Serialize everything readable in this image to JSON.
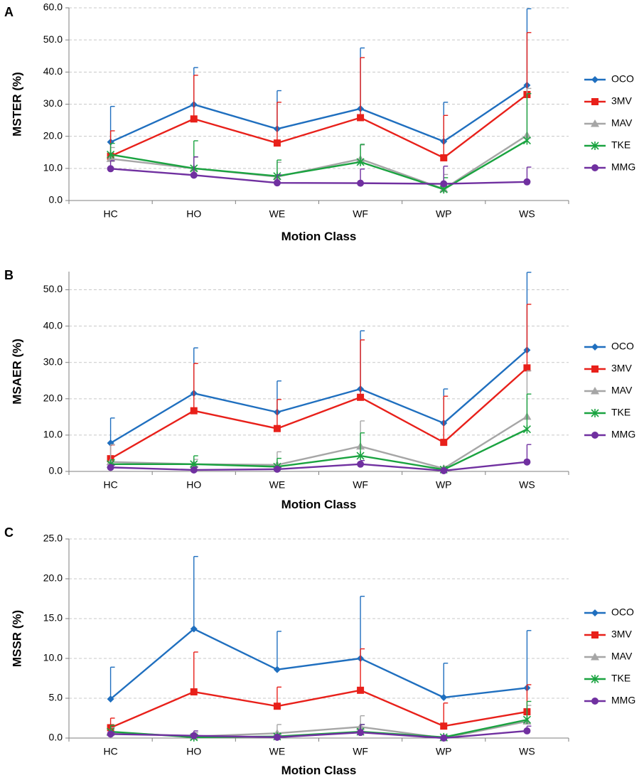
{
  "chart_data": [
    {
      "panel": "A",
      "type": "line",
      "title": "",
      "xlabel": "Motion Class",
      "ylabel": "MSTER (%)",
      "categories": [
        "HC",
        "HO",
        "WE",
        "WF",
        "WP",
        "WS"
      ],
      "ylim": [
        0,
        60
      ],
      "yticks": [
        "0.0",
        "10.0",
        "20.0",
        "30.0",
        "40.0",
        "50.0",
        "60.0"
      ],
      "grid": true,
      "legend_position": "right",
      "series": [
        {
          "name": "OCO",
          "color": "#1f6fbf",
          "marker": "diamond",
          "values": [
            18.2,
            29.9,
            22.3,
            28.6,
            18.4,
            35.9
          ],
          "errors": [
            11.1,
            11.5,
            11.9,
            18.9,
            12.2,
            23.8
          ]
        },
        {
          "name": "3MV",
          "color": "#e8201a",
          "marker": "square",
          "values": [
            13.8,
            25.4,
            17.9,
            25.8,
            13.3,
            33.0
          ],
          "errors": [
            7.9,
            13.6,
            12.7,
            18.7,
            13.2,
            19.3
          ]
        },
        {
          "name": "MAV",
          "color": "#a6a6a6",
          "marker": "triangle",
          "values": [
            13.0,
            10.0,
            7.4,
            12.9,
            3.6,
            20.3
          ],
          "errors": [
            3.5,
            3.5,
            4.5,
            4.4,
            4.5,
            14.6
          ]
        },
        {
          "name": "TKE",
          "color": "#1aa340",
          "marker": "star",
          "values": [
            14.3,
            10.0,
            7.6,
            12.0,
            3.5,
            18.7
          ],
          "errors": [
            3.5,
            8.6,
            5.0,
            5.5,
            3.6,
            14.6
          ]
        },
        {
          "name": "MMG",
          "color": "#7030a0",
          "marker": "circle",
          "values": [
            9.9,
            7.9,
            5.5,
            5.4,
            5.2,
            5.8
          ],
          "errors": [
            2.5,
            5.7,
            2.5,
            4.4,
            5.5,
            4.6
          ]
        }
      ]
    },
    {
      "panel": "B",
      "type": "line",
      "title": "",
      "xlabel": "Motion Class",
      "ylabel": "MSAER (%)",
      "categories": [
        "HC",
        "HO",
        "WE",
        "WF",
        "WP",
        "WS"
      ],
      "ylim": [
        0,
        55
      ],
      "yticks": [
        "0.0",
        "10.0",
        "20.0",
        "30.0",
        "40.0",
        "50.0"
      ],
      "grid": true,
      "legend_position": "right",
      "series": [
        {
          "name": "OCO",
          "color": "#1f6fbf",
          "marker": "diamond",
          "values": [
            7.8,
            21.5,
            16.3,
            22.7,
            13.3,
            33.4
          ],
          "errors": [
            6.9,
            12.5,
            8.6,
            16.0,
            9.4,
            21.4
          ]
        },
        {
          "name": "3MV",
          "color": "#e8201a",
          "marker": "square",
          "values": [
            3.5,
            16.7,
            11.8,
            20.4,
            8.0,
            28.5
          ],
          "errors": [
            3.8,
            13.0,
            8.0,
            15.8,
            12.7,
            17.5
          ]
        },
        {
          "name": "MAV",
          "color": "#a6a6a6",
          "marker": "triangle",
          "values": [
            2.6,
            2.0,
            1.8,
            6.9,
            0.8,
            15.1
          ],
          "errors": [
            4.8,
            1.3,
            3.6,
            7.0,
            0.6,
            12.6
          ]
        },
        {
          "name": "TKE",
          "color": "#1aa340",
          "marker": "star",
          "values": [
            2.0,
            2.0,
            1.3,
            4.3,
            0.5,
            11.6
          ],
          "errors": [
            1.2,
            2.3,
            2.3,
            6.3,
            0.6,
            9.7
          ]
        },
        {
          "name": "MMG",
          "color": "#7030a0",
          "marker": "circle",
          "values": [
            1.1,
            0.4,
            0.6,
            2.0,
            0.2,
            2.6
          ],
          "errors": [
            0.6,
            0.8,
            0.5,
            1.0,
            0.4,
            4.8
          ]
        }
      ]
    },
    {
      "panel": "C",
      "type": "line",
      "title": "",
      "xlabel": "Motion Class",
      "ylabel": "MSSR (%)",
      "categories": [
        "HC",
        "HO",
        "WE",
        "WF",
        "WP",
        "WS"
      ],
      "ylim": [
        0,
        25
      ],
      "yticks": [
        "0.0",
        "5.0",
        "10.0",
        "15.0",
        "20.0",
        "25.0"
      ],
      "grid": true,
      "legend_position": "right",
      "series": [
        {
          "name": "OCO",
          "color": "#1f6fbf",
          "marker": "diamond",
          "values": [
            4.9,
            13.7,
            8.6,
            10.0,
            5.1,
            6.3
          ],
          "errors": [
            4.0,
            9.1,
            4.8,
            7.8,
            4.3,
            7.2
          ]
        },
        {
          "name": "3MV",
          "color": "#e8201a",
          "marker": "square",
          "values": [
            1.3,
            5.8,
            4.0,
            6.0,
            1.5,
            3.3
          ],
          "errors": [
            1.2,
            5.0,
            2.4,
            5.2,
            2.9,
            3.4
          ]
        },
        {
          "name": "MAV",
          "color": "#a6a6a6",
          "marker": "triangle",
          "values": [
            0.7,
            0.2,
            0.6,
            1.4,
            0.0,
            2.1
          ],
          "errors": [
            0.6,
            0.5,
            1.1,
            1.4,
            0.2,
            2.0
          ]
        },
        {
          "name": "TKE",
          "color": "#1aa340",
          "marker": "star",
          "values": [
            0.8,
            0.1,
            0.2,
            0.8,
            0.1,
            2.3
          ],
          "errors": [
            0.8,
            0.3,
            0.3,
            0.9,
            0.2,
            2.3
          ]
        },
        {
          "name": "MMG",
          "color": "#7030a0",
          "marker": "circle",
          "values": [
            0.5,
            0.3,
            0.1,
            0.7,
            0.0,
            0.9
          ],
          "errors": [
            0.2,
            0.6,
            0.2,
            1.0,
            0.1,
            0.6
          ]
        }
      ]
    }
  ]
}
